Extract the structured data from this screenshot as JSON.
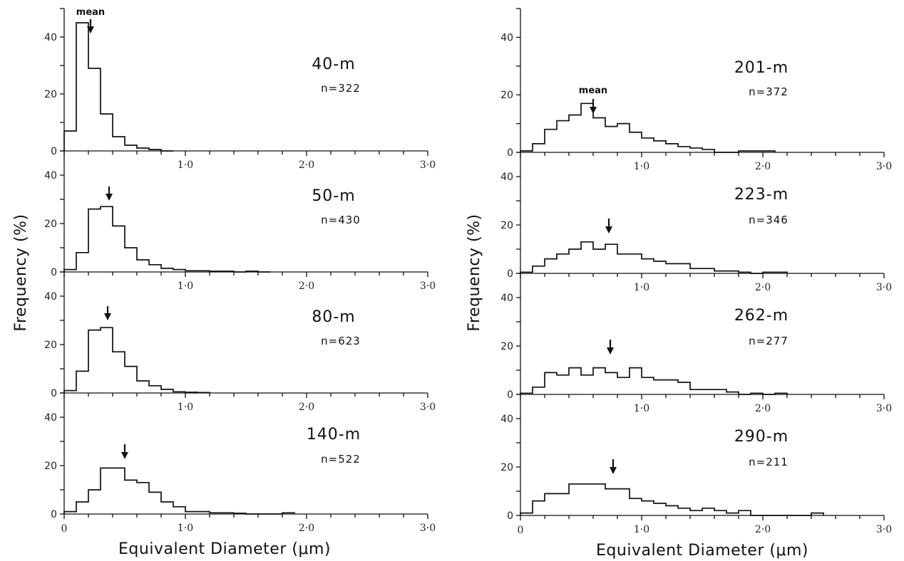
{
  "figure": {
    "left_ylabel": "Frequency (%)",
    "right_ylabel": "Frequency (%)",
    "left_xlabel": "Equivalent Diameter (μm)",
    "right_xlabel": "Equivalent Diameter (μm)",
    "x_origin_label": "0",
    "mean_word": "mean"
  },
  "chart_data": [
    {
      "type": "bar",
      "title": "40-m",
      "subtitle": "n=322",
      "mean": 0.22,
      "bin_edges": [
        0,
        0.1,
        0.2,
        0.3,
        0.4,
        0.5,
        0.6,
        0.7,
        0.8,
        0.9
      ],
      "values": [
        7,
        45,
        29,
        13,
        5,
        2,
        1,
        0.5,
        0
      ],
      "xlim": [
        0,
        3.0
      ],
      "ylim": [
        0,
        50
      ],
      "xticks": [
        "1.0",
        "2.0",
        "3.0"
      ],
      "yticks": [
        "0",
        "20",
        "40"
      ]
    },
    {
      "type": "bar",
      "title": "50-m",
      "subtitle": "n=430",
      "mean": 0.38,
      "bin_edges": [
        0,
        0.1,
        0.2,
        0.3,
        0.4,
        0.5,
        0.6,
        0.7,
        0.8,
        0.9,
        1.0,
        1.1,
        1.2,
        1.3,
        1.4,
        1.5,
        1.6,
        1.7
      ],
      "values": [
        1,
        8,
        26,
        27,
        19,
        10,
        5,
        3,
        1.5,
        1,
        0.5,
        0.5,
        0.3,
        0.3,
        0,
        0.3,
        0
      ],
      "xlim": [
        0,
        3.0
      ],
      "ylim": [
        0,
        50
      ],
      "xticks": [
        "1.0",
        "2.0",
        "3.0"
      ],
      "yticks": [
        "0",
        "20",
        "40"
      ]
    },
    {
      "type": "bar",
      "title": "80-m",
      "subtitle": "n=623",
      "mean": 0.37,
      "bin_edges": [
        0,
        0.1,
        0.2,
        0.3,
        0.4,
        0.5,
        0.6,
        0.7,
        0.8,
        0.9,
        1.0,
        1.1,
        1.2
      ],
      "values": [
        1,
        9,
        26,
        27,
        17,
        11,
        5,
        3,
        1.5,
        0.5,
        0.3,
        0.2
      ],
      "xlim": [
        0,
        3.0
      ],
      "ylim": [
        0,
        50
      ],
      "xticks": [
        "1.0",
        "2.0",
        "3.0"
      ],
      "yticks": [
        "0",
        "20",
        "40"
      ]
    },
    {
      "type": "bar",
      "title": "140-m",
      "subtitle": "n=522",
      "mean": 0.5,
      "bin_edges": [
        0,
        0.1,
        0.2,
        0.3,
        0.4,
        0.5,
        0.6,
        0.7,
        0.8,
        0.9,
        1.0,
        1.1,
        1.2,
        1.3,
        1.4,
        1.5,
        1.6,
        1.7,
        1.8,
        1.9
      ],
      "values": [
        1,
        5,
        10,
        19,
        19,
        14,
        13,
        9,
        5,
        3,
        1,
        1,
        0.5,
        0.5,
        0.3,
        0,
        0,
        0,
        0.5
      ],
      "xlim": [
        0,
        3.0
      ],
      "ylim": [
        0,
        50
      ],
      "xticks": [
        "1.0",
        "2.0",
        "3.0"
      ],
      "yticks": [
        "0",
        "20",
        "40"
      ]
    },
    {
      "type": "bar",
      "title": "201-m",
      "subtitle": "n=372",
      "mean": 0.63,
      "bin_edges": [
        0,
        0.1,
        0.2,
        0.3,
        0.4,
        0.5,
        0.6,
        0.7,
        0.8,
        0.9,
        1.0,
        1.1,
        1.2,
        1.3,
        1.4,
        1.5,
        1.6,
        1.7,
        1.8,
        1.9,
        2.0,
        2.1
      ],
      "values": [
        0.5,
        3,
        8,
        11,
        13,
        17,
        12,
        9,
        10,
        7,
        5,
        4,
        3,
        2,
        1.5,
        1,
        0,
        0,
        0.5,
        0.5,
        0.5
      ],
      "xlim": [
        0,
        3.0
      ],
      "ylim": [
        0,
        50
      ],
      "xticks": [
        "1.0",
        "2.0",
        "3.0"
      ],
      "yticks": [
        "0",
        "20",
        "40"
      ]
    },
    {
      "type": "bar",
      "title": "223-m",
      "subtitle": "n=346",
      "mean": 0.75,
      "bin_edges": [
        0,
        0.1,
        0.2,
        0.3,
        0.4,
        0.5,
        0.6,
        0.7,
        0.8,
        0.9,
        1.0,
        1.1,
        1.2,
        1.3,
        1.4,
        1.5,
        1.6,
        1.7,
        1.8,
        1.9,
        2.0,
        2.1,
        2.2
      ],
      "values": [
        0.5,
        3,
        6,
        8,
        10,
        13,
        10,
        12,
        8,
        8,
        6,
        5,
        4,
        4,
        2,
        2,
        1,
        1,
        0.5,
        0,
        0.5,
        0.5
      ],
      "xlim": [
        0,
        3.0
      ],
      "ylim": [
        0,
        50
      ],
      "xticks": [
        "1.0",
        "2.0",
        "3.0"
      ],
      "yticks": [
        "0",
        "20",
        "40"
      ]
    },
    {
      "type": "bar",
      "title": "262-m",
      "subtitle": "n=277",
      "mean": 0.78,
      "bin_edges": [
        0,
        0.1,
        0.2,
        0.3,
        0.4,
        0.5,
        0.6,
        0.7,
        0.8,
        0.9,
        1.0,
        1.1,
        1.2,
        1.3,
        1.4,
        1.5,
        1.6,
        1.7,
        1.8,
        1.9,
        2.0,
        2.1,
        2.2
      ],
      "values": [
        0.5,
        3,
        9,
        8,
        11,
        8,
        11,
        9,
        7,
        11,
        7,
        6,
        6,
        5,
        2,
        2,
        2,
        1,
        0,
        0.5,
        0,
        0.5
      ],
      "xlim": [
        0,
        3.0
      ],
      "ylim": [
        0,
        50
      ],
      "xticks": [
        "1.0",
        "2.0",
        "3.0"
      ],
      "yticks": [
        "0",
        "20",
        "40"
      ]
    },
    {
      "type": "bar",
      "title": "290-m",
      "subtitle": "n=211",
      "mean": 0.8,
      "bin_edges": [
        0,
        0.1,
        0.2,
        0.3,
        0.4,
        0.5,
        0.6,
        0.7,
        0.8,
        0.9,
        1.0,
        1.1,
        1.2,
        1.3,
        1.4,
        1.5,
        1.6,
        1.7,
        1.8,
        1.9,
        2.0,
        2.1,
        2.2,
        2.3,
        2.4,
        2.5
      ],
      "values": [
        1,
        6,
        9,
        9,
        13,
        13,
        13,
        11,
        11,
        7,
        6,
        5,
        4,
        3,
        2,
        3,
        2,
        1,
        2,
        0,
        0,
        0,
        0,
        0,
        1
      ],
      "xlim": [
        0,
        3.0
      ],
      "ylim": [
        0,
        50
      ],
      "xticks": [
        "1.0",
        "2.0",
        "3.0"
      ],
      "yticks": [
        "0",
        "20",
        "40"
      ]
    }
  ]
}
